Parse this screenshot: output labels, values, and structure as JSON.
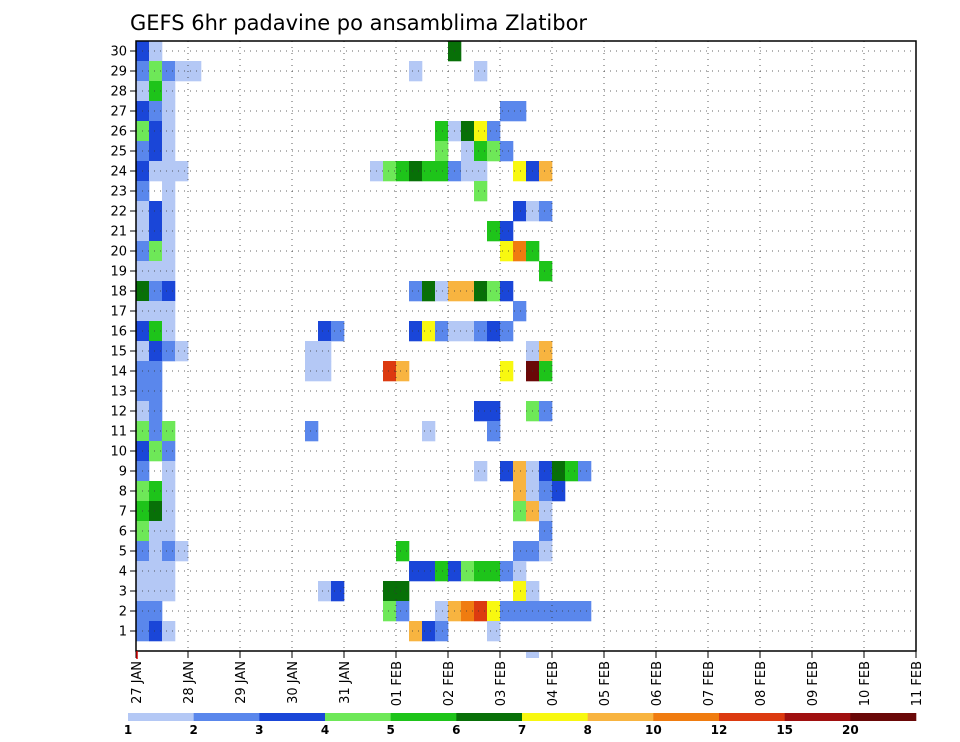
{
  "chart_data": {
    "type": "heatmap",
    "title": "GEFS 6hr padavine po ansamblima Zlatibor",
    "xlabel": "",
    "ylabel": "",
    "x_ticks": [
      "27 JAN",
      "28 JAN",
      "29 JAN",
      "30 JAN",
      "31 JAN",
      "01 FEB",
      "02 FEB",
      "03 FEB",
      "04 FEB",
      "05 FEB",
      "06 FEB",
      "07 FEB",
      "08 FEB",
      "09 FEB",
      "10 FEB",
      "11 FEB"
    ],
    "y_ticks": [
      1,
      2,
      3,
      4,
      5,
      6,
      7,
      8,
      9,
      10,
      11,
      12,
      13,
      14,
      15,
      16,
      17,
      18,
      19,
      20,
      21,
      22,
      23,
      24,
      25,
      26,
      27,
      28,
      29,
      30
    ],
    "ensemble_members": 30,
    "time_step_hours": 6,
    "steps_per_day": 4,
    "grid": true,
    "colorbar": {
      "placement": "bottom",
      "boundaries": [
        "1",
        "2",
        "3",
        "4",
        "5",
        "6",
        "7",
        "8",
        "10",
        "12",
        "15",
        "20"
      ],
      "colors": [
        "#b4c8f5",
        "#5a87ec",
        "#1a46d8",
        "#6ee858",
        "#1ec41a",
        "#087008",
        "#f8f810",
        "#f8b440",
        "#f07c10",
        "#dc3a10",
        "#a01010",
        "#6a0808"
      ]
    },
    "cells": [
      {
        "member": 30,
        "ranges": [
          [
            1,
            1,
            3
          ],
          [
            2,
            2,
            1
          ],
          [
            25,
            25,
            6
          ]
        ]
      },
      {
        "member": 29,
        "ranges": [
          [
            1,
            1,
            2
          ],
          [
            2,
            2,
            4
          ],
          [
            3,
            3,
            2
          ],
          [
            4,
            5,
            1
          ],
          [
            22,
            22,
            1
          ],
          [
            27,
            27,
            1
          ]
        ]
      },
      {
        "member": 28,
        "ranges": [
          [
            1,
            1,
            1
          ],
          [
            2,
            2,
            5
          ],
          [
            3,
            3,
            1
          ]
        ]
      },
      {
        "member": 27,
        "ranges": [
          [
            1,
            1,
            3
          ],
          [
            2,
            2,
            2
          ],
          [
            3,
            3,
            1
          ],
          [
            29,
            30,
            2
          ]
        ]
      },
      {
        "member": 26,
        "ranges": [
          [
            1,
            1,
            4
          ],
          [
            2,
            2,
            3
          ],
          [
            3,
            3,
            1
          ],
          [
            24,
            24,
            5
          ],
          [
            25,
            25,
            1
          ],
          [
            26,
            26,
            6
          ],
          [
            27,
            27,
            7
          ],
          [
            28,
            28,
            2
          ]
        ]
      },
      {
        "member": 25,
        "ranges": [
          [
            1,
            1,
            2
          ],
          [
            2,
            2,
            3
          ],
          [
            3,
            3,
            1
          ],
          [
            24,
            24,
            4
          ],
          [
            26,
            26,
            1
          ],
          [
            27,
            27,
            5
          ],
          [
            28,
            28,
            4
          ],
          [
            29,
            29,
            2
          ]
        ]
      },
      {
        "member": 24,
        "ranges": [
          [
            1,
            1,
            3
          ],
          [
            2,
            4,
            1
          ],
          [
            19,
            19,
            1
          ],
          [
            20,
            20,
            4
          ],
          [
            21,
            21,
            5
          ],
          [
            22,
            22,
            6
          ],
          [
            23,
            24,
            5
          ],
          [
            25,
            25,
            2
          ],
          [
            26,
            27,
            1
          ],
          [
            30,
            30,
            7
          ],
          [
            31,
            31,
            3
          ],
          [
            32,
            32,
            8
          ]
        ]
      },
      {
        "member": 23,
        "ranges": [
          [
            1,
            1,
            2
          ],
          [
            3,
            3,
            1
          ],
          [
            27,
            27,
            4
          ]
        ]
      },
      {
        "member": 22,
        "ranges": [
          [
            1,
            1,
            1
          ],
          [
            2,
            2,
            3
          ],
          [
            3,
            3,
            1
          ],
          [
            30,
            30,
            3
          ],
          [
            31,
            31,
            1
          ],
          [
            32,
            32,
            2
          ]
        ]
      },
      {
        "member": 21,
        "ranges": [
          [
            1,
            1,
            1
          ],
          [
            2,
            2,
            3
          ],
          [
            3,
            3,
            1
          ],
          [
            28,
            28,
            5
          ],
          [
            29,
            29,
            3
          ]
        ]
      },
      {
        "member": 20,
        "ranges": [
          [
            1,
            1,
            2
          ],
          [
            2,
            2,
            4
          ],
          [
            3,
            3,
            1
          ],
          [
            29,
            29,
            7
          ],
          [
            30,
            30,
            9
          ],
          [
            31,
            31,
            5
          ]
        ]
      },
      {
        "member": 19,
        "ranges": [
          [
            1,
            1,
            1
          ],
          [
            2,
            3,
            1
          ],
          [
            32,
            32,
            5
          ]
        ]
      },
      {
        "member": 18,
        "ranges": [
          [
            1,
            1,
            6
          ],
          [
            2,
            2,
            2
          ],
          [
            3,
            3,
            3
          ],
          [
            22,
            22,
            2
          ],
          [
            23,
            23,
            6
          ],
          [
            24,
            24,
            1
          ],
          [
            25,
            26,
            8
          ],
          [
            27,
            27,
            6
          ],
          [
            28,
            28,
            4
          ],
          [
            29,
            29,
            3
          ]
        ]
      },
      {
        "member": 17,
        "ranges": [
          [
            1,
            1,
            1
          ],
          [
            2,
            3,
            1
          ],
          [
            30,
            30,
            2
          ]
        ]
      },
      {
        "member": 16,
        "ranges": [
          [
            1,
            1,
            3
          ],
          [
            2,
            2,
            5
          ],
          [
            3,
            3,
            1
          ],
          [
            15,
            15,
            3
          ],
          [
            16,
            16,
            2
          ],
          [
            22,
            22,
            3
          ],
          [
            23,
            23,
            7
          ],
          [
            24,
            24,
            2
          ],
          [
            25,
            26,
            1
          ],
          [
            27,
            27,
            2
          ],
          [
            28,
            28,
            3
          ],
          [
            29,
            29,
            2
          ]
        ]
      },
      {
        "member": 15,
        "ranges": [
          [
            1,
            1,
            1
          ],
          [
            2,
            2,
            3
          ],
          [
            3,
            3,
            2
          ],
          [
            4,
            4,
            1
          ],
          [
            14,
            15,
            1
          ],
          [
            31,
            31,
            1
          ],
          [
            32,
            32,
            8
          ]
        ]
      },
      {
        "member": 14,
        "ranges": [
          [
            1,
            1,
            2
          ],
          [
            2,
            2,
            2
          ],
          [
            14,
            15,
            1
          ],
          [
            20,
            20,
            10
          ],
          [
            21,
            21,
            8
          ],
          [
            29,
            29,
            7
          ],
          [
            31,
            31,
            12
          ],
          [
            32,
            32,
            5
          ]
        ]
      },
      {
        "member": 13,
        "ranges": [
          [
            1,
            1,
            2
          ],
          [
            2,
            2,
            2
          ]
        ]
      },
      {
        "member": 12,
        "ranges": [
          [
            1,
            1,
            1
          ],
          [
            2,
            2,
            2
          ],
          [
            27,
            28,
            3
          ],
          [
            31,
            31,
            4
          ],
          [
            32,
            32,
            2
          ]
        ]
      },
      {
        "member": 11,
        "ranges": [
          [
            1,
            1,
            4
          ],
          [
            2,
            2,
            2
          ],
          [
            3,
            3,
            4
          ],
          [
            14,
            14,
            2
          ],
          [
            23,
            23,
            1
          ],
          [
            28,
            28,
            2
          ]
        ]
      },
      {
        "member": 10,
        "ranges": [
          [
            1,
            1,
            3
          ],
          [
            2,
            2,
            4
          ],
          [
            3,
            3,
            2
          ]
        ]
      },
      {
        "member": 9,
        "ranges": [
          [
            1,
            1,
            2
          ],
          [
            3,
            3,
            1
          ],
          [
            27,
            27,
            1
          ],
          [
            29,
            29,
            3
          ],
          [
            30,
            30,
            8
          ],
          [
            31,
            31,
            1
          ],
          [
            32,
            32,
            3
          ],
          [
            33,
            33,
            6
          ],
          [
            34,
            34,
            5
          ],
          [
            35,
            35,
            2
          ]
        ]
      },
      {
        "member": 8,
        "ranges": [
          [
            1,
            1,
            4
          ],
          [
            2,
            2,
            5
          ],
          [
            3,
            3,
            1
          ],
          [
            30,
            30,
            8
          ],
          [
            31,
            31,
            1
          ],
          [
            32,
            32,
            2
          ],
          [
            33,
            33,
            3
          ]
        ]
      },
      {
        "member": 7,
        "ranges": [
          [
            1,
            1,
            5
          ],
          [
            2,
            2,
            6
          ],
          [
            3,
            3,
            1
          ],
          [
            30,
            30,
            4
          ],
          [
            31,
            31,
            8
          ],
          [
            32,
            32,
            1
          ]
        ]
      },
      {
        "member": 6,
        "ranges": [
          [
            1,
            1,
            4
          ],
          [
            2,
            2,
            1
          ],
          [
            3,
            3,
            1
          ],
          [
            32,
            32,
            2
          ]
        ]
      },
      {
        "member": 5,
        "ranges": [
          [
            1,
            1,
            2
          ],
          [
            2,
            2,
            1
          ],
          [
            3,
            3,
            2
          ],
          [
            4,
            4,
            1
          ],
          [
            21,
            21,
            5
          ],
          [
            30,
            31,
            2
          ],
          [
            32,
            32,
            1
          ]
        ]
      },
      {
        "member": 4,
        "ranges": [
          [
            1,
            1,
            1
          ],
          [
            2,
            3,
            1
          ],
          [
            22,
            23,
            3
          ],
          [
            24,
            24,
            5
          ],
          [
            25,
            25,
            3
          ],
          [
            26,
            26,
            4
          ],
          [
            27,
            28,
            5
          ],
          [
            29,
            29,
            2
          ],
          [
            30,
            30,
            1
          ]
        ]
      },
      {
        "member": 3,
        "ranges": [
          [
            1,
            1,
            1
          ],
          [
            2,
            3,
            1
          ],
          [
            15,
            15,
            1
          ],
          [
            16,
            16,
            3
          ],
          [
            20,
            21,
            6
          ],
          [
            30,
            30,
            7
          ],
          [
            31,
            31,
            1
          ]
        ]
      },
      {
        "member": 2,
        "ranges": [
          [
            1,
            1,
            2
          ],
          [
            2,
            2,
            2
          ],
          [
            20,
            20,
            4
          ],
          [
            21,
            21,
            2
          ],
          [
            24,
            24,
            1
          ],
          [
            25,
            25,
            8
          ],
          [
            26,
            26,
            9
          ],
          [
            27,
            27,
            10
          ],
          [
            28,
            28,
            7
          ],
          [
            29,
            29,
            2
          ],
          [
            30,
            35,
            2
          ]
        ]
      },
      {
        "member": 1,
        "ranges": [
          [
            1,
            1,
            2
          ],
          [
            2,
            2,
            3
          ],
          [
            3,
            3,
            1
          ],
          [
            22,
            22,
            8
          ],
          [
            23,
            23,
            3
          ],
          [
            24,
            24,
            2
          ],
          [
            28,
            28,
            1
          ]
        ]
      }
    ],
    "below_axis_cells": [
      {
        "member": 0,
        "ranges": [
          [
            31,
            31,
            1
          ]
        ]
      }
    ]
  }
}
